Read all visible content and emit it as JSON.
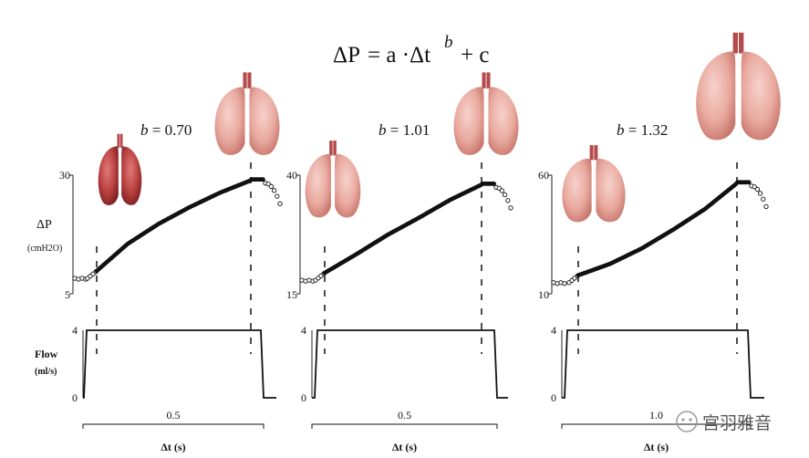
{
  "equation": {
    "delta": "ΔP",
    "eq": "= a ·Δt",
    "exp": "b",
    "rest": "+ c"
  },
  "y_label": {
    "line1": "ΔP",
    "line2": "(cmH2O)"
  },
  "flow_label": {
    "line1": "Flow",
    "line2": "(ml/s)"
  },
  "watermark": "宫羽雅音",
  "chart_data": [
    {
      "type": "scatter",
      "title": "b = 0.70",
      "b_label": "b",
      "b_value": "= 0.70",
      "ylim": [
        5,
        30
      ],
      "yticks": [
        "30",
        "5"
      ],
      "x": [
        0.0,
        0.1,
        0.2,
        0.3,
        0.4,
        0.5,
        0.55
      ],
      "y": [
        9.8,
        15.5,
        19.7,
        23.2,
        26.3,
        28.9,
        29.1
      ],
      "flow": {
        "ylim": [
          0,
          4
        ],
        "yticks": [
          "4",
          "0"
        ],
        "value": 4
      },
      "time_label": "0.5",
      "xlabel": "Δt (s)"
    },
    {
      "type": "scatter",
      "title": "b = 1.01",
      "b_label": "b",
      "b_value": "= 1.01",
      "ylim": [
        15,
        40
      ],
      "yticks": [
        "40",
        "15"
      ],
      "x": [
        0.0,
        0.1,
        0.2,
        0.3,
        0.4,
        0.5,
        0.55
      ],
      "y": [
        19.4,
        23.3,
        27.4,
        31.0,
        34.8,
        38.0,
        38.3
      ],
      "flow": {
        "ylim": [
          0,
          4
        ],
        "yticks": [
          "4",
          "0"
        ],
        "value": 4
      },
      "time_label": "0.5",
      "xlabel": "Δt (s)"
    },
    {
      "type": "scatter",
      "title": "b = 1.32",
      "b_label": "b",
      "b_value": "= 1.32",
      "ylim": [
        10,
        60
      ],
      "yticks": [
        "60",
        "10"
      ],
      "x": [
        0.0,
        0.2,
        0.4,
        0.6,
        0.8,
        1.0,
        1.05
      ],
      "y": [
        17.8,
        22.6,
        29.1,
        37.1,
        45.8,
        56.6,
        57.2
      ],
      "flow": {
        "ylim": [
          0,
          4
        ],
        "yticks": [
          "4",
          "0"
        ],
        "value": 4
      },
      "time_label": "1.0",
      "xlabel": "Δt (s)"
    }
  ]
}
